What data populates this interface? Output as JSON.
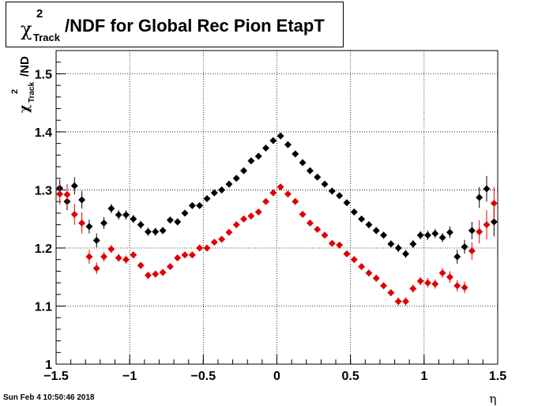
{
  "title": {
    "chi": "χ",
    "sup": "2",
    "sub": "Track",
    "rest": "/NDF for Global Rec Pion EtapT"
  },
  "timestamp": "Sun Feb  4 10:50:46 2018",
  "chart_data": {
    "type": "scatter",
    "xlabel": "η",
    "ylabel": {
      "chi": "χ",
      "sup": "2",
      "sub": "Track",
      "rest": "/ND"
    },
    "xlim": [
      -1.5,
      1.5
    ],
    "ylim": [
      1.0,
      1.54
    ],
    "xticks": [
      -1.5,
      -1,
      -0.5,
      0,
      0.5,
      1,
      1.5
    ],
    "xtick_labels": [
      "−1.5",
      "−1",
      "−0.5",
      "0",
      "0.5",
      "1",
      "1.5"
    ],
    "yticks": [
      1,
      1.1,
      1.2,
      1.3,
      1.4,
      1.5
    ],
    "ytick_labels": [
      "1",
      "1.1",
      "1.2",
      "1.3",
      "1.4",
      "1.5"
    ],
    "grid": true,
    "series": [
      {
        "color": "#000000",
        "x": [
          -1.475,
          -1.425,
          -1.375,
          -1.325,
          -1.275,
          -1.225,
          -1.175,
          -1.125,
          -1.075,
          -1.025,
          -0.975,
          -0.925,
          -0.875,
          -0.825,
          -0.775,
          -0.725,
          -0.675,
          -0.625,
          -0.575,
          -0.525,
          -0.475,
          -0.425,
          -0.375,
          -0.325,
          -0.275,
          -0.225,
          -0.175,
          -0.125,
          -0.075,
          -0.025,
          0.025,
          0.075,
          0.125,
          0.175,
          0.225,
          0.275,
          0.325,
          0.375,
          0.425,
          0.475,
          0.525,
          0.575,
          0.625,
          0.675,
          0.725,
          0.775,
          0.825,
          0.875,
          0.925,
          0.975,
          1.025,
          1.075,
          1.125,
          1.175,
          1.225,
          1.275,
          1.325,
          1.375,
          1.425,
          1.475
        ],
        "y": [
          1.303,
          1.28,
          1.307,
          1.283,
          1.237,
          1.213,
          1.243,
          1.268,
          1.257,
          1.257,
          1.25,
          1.24,
          1.228,
          1.228,
          1.23,
          1.248,
          1.245,
          1.26,
          1.273,
          1.273,
          1.285,
          1.295,
          1.3,
          1.31,
          1.32,
          1.333,
          1.35,
          1.358,
          1.372,
          1.385,
          1.393,
          1.378,
          1.362,
          1.347,
          1.333,
          1.322,
          1.31,
          1.298,
          1.29,
          1.278,
          1.262,
          1.25,
          1.24,
          1.23,
          1.222,
          1.207,
          1.2,
          1.19,
          1.207,
          1.222,
          1.222,
          1.225,
          1.218,
          1.227,
          1.185,
          1.202,
          1.23,
          1.287,
          1.302,
          1.245
        ],
        "err": [
          0.015,
          0.015,
          0.015,
          0.015,
          0.012,
          0.012,
          0.01,
          0.008,
          0.008,
          0.008,
          0.007,
          0.007,
          0.007,
          0.007,
          0.006,
          0.006,
          0.006,
          0.005,
          0.005,
          0.005,
          0.005,
          0.005,
          0.005,
          0.005,
          0.005,
          0.005,
          0.005,
          0.005,
          0.005,
          0.005,
          0.005,
          0.005,
          0.005,
          0.005,
          0.005,
          0.005,
          0.005,
          0.005,
          0.005,
          0.005,
          0.005,
          0.005,
          0.006,
          0.006,
          0.006,
          0.006,
          0.007,
          0.007,
          0.007,
          0.007,
          0.008,
          0.008,
          0.008,
          0.01,
          0.012,
          0.012,
          0.015,
          0.018,
          0.022,
          0.025
        ]
      },
      {
        "color": "#e00000",
        "x": [
          -1.475,
          -1.425,
          -1.375,
          -1.325,
          -1.275,
          -1.225,
          -1.175,
          -1.125,
          -1.075,
          -1.025,
          -0.975,
          -0.925,
          -0.875,
          -0.825,
          -0.775,
          -0.725,
          -0.675,
          -0.625,
          -0.575,
          -0.525,
          -0.475,
          -0.425,
          -0.375,
          -0.325,
          -0.275,
          -0.225,
          -0.175,
          -0.125,
          -0.075,
          -0.025,
          0.025,
          0.075,
          0.125,
          0.175,
          0.225,
          0.275,
          0.325,
          0.375,
          0.425,
          0.475,
          0.525,
          0.575,
          0.625,
          0.675,
          0.725,
          0.775,
          0.825,
          0.875,
          0.925,
          0.975,
          1.025,
          1.075,
          1.125,
          1.175,
          1.225,
          1.275,
          1.325,
          1.375,
          1.425,
          1.475
        ],
        "y": [
          1.293,
          1.292,
          1.258,
          1.243,
          1.185,
          1.165,
          1.185,
          1.198,
          1.183,
          1.18,
          1.188,
          1.17,
          1.153,
          1.155,
          1.158,
          1.168,
          1.183,
          1.188,
          1.188,
          1.2,
          1.2,
          1.21,
          1.215,
          1.227,
          1.24,
          1.25,
          1.255,
          1.262,
          1.28,
          1.295,
          1.305,
          1.293,
          1.28,
          1.258,
          1.243,
          1.232,
          1.222,
          1.208,
          1.205,
          1.19,
          1.18,
          1.168,
          1.157,
          1.148,
          1.135,
          1.123,
          1.108,
          1.108,
          1.13,
          1.143,
          1.14,
          1.138,
          1.157,
          1.15,
          1.135,
          1.132,
          1.195,
          1.228,
          1.24,
          1.277
        ],
        "err": [
          0.018,
          0.018,
          0.018,
          0.018,
          0.012,
          0.01,
          0.008,
          0.007,
          0.007,
          0.007,
          0.006,
          0.006,
          0.006,
          0.006,
          0.006,
          0.005,
          0.005,
          0.005,
          0.005,
          0.005,
          0.005,
          0.005,
          0.005,
          0.005,
          0.005,
          0.005,
          0.005,
          0.005,
          0.005,
          0.005,
          0.005,
          0.005,
          0.005,
          0.005,
          0.005,
          0.005,
          0.005,
          0.005,
          0.005,
          0.005,
          0.005,
          0.005,
          0.006,
          0.006,
          0.006,
          0.006,
          0.007,
          0.007,
          0.007,
          0.007,
          0.008,
          0.008,
          0.008,
          0.01,
          0.01,
          0.01,
          0.015,
          0.02,
          0.025,
          0.028
        ]
      }
    ]
  }
}
